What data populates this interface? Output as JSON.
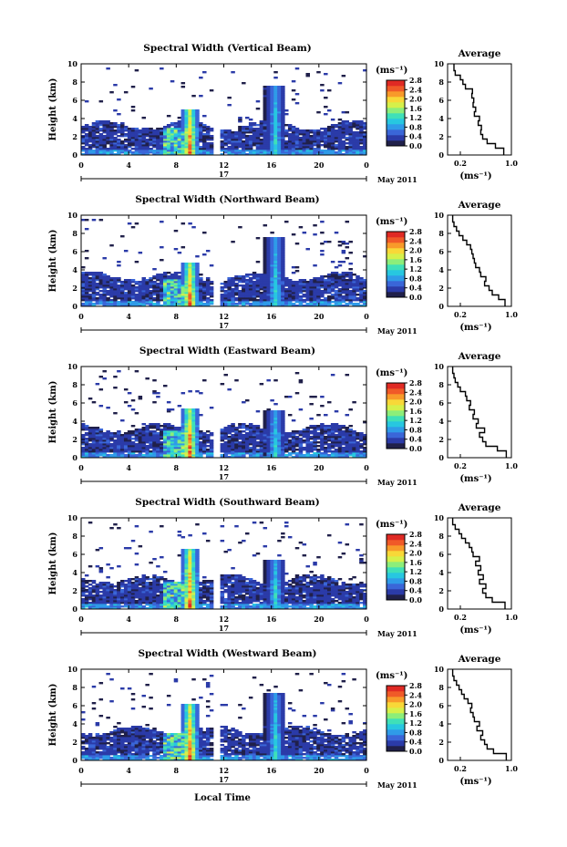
{
  "figure": {
    "month_label": "May 2011",
    "day_label": "17",
    "x_title": "Local Time",
    "units_label": "(ms⁻¹)",
    "average_title": "Average"
  },
  "colorbar_ticks": [
    "2.8",
    "2.4",
    "2.0",
    "1.6",
    "1.2",
    "0.8",
    "0.4",
    "0.0"
  ],
  "colors": {
    "colormap": [
      "#20204a",
      "#2b3ba8",
      "#3a66d8",
      "#2f9be8",
      "#27c7e0",
      "#3fe0b8",
      "#8cee7a",
      "#d6f04a",
      "#f8d838",
      "#f89a2a",
      "#f05a28",
      "#e02a24"
    ],
    "line": "#000000"
  },
  "chart_data": [
    {
      "type": "heatmap",
      "title": "Spectral Width (Vertical Beam)",
      "ylabel": "Height (km)",
      "xlim": [
        0,
        24
      ],
      "ylim": [
        0,
        10
      ],
      "xticks": [
        "0",
        "4",
        "8",
        "12",
        "16",
        "20",
        "0"
      ],
      "yticks": [
        "0",
        "2",
        "4",
        "6",
        "8",
        "10"
      ],
      "colorbar_range": [
        0.0,
        2.8
      ],
      "data_gaps": [
        [
          11.0,
          11.7
        ]
      ],
      "features": [
        {
          "x": 9.0,
          "peak_height": 5.0,
          "max_value": 2.8
        },
        {
          "x": 16.2,
          "peak_height": 7.6,
          "max_value": 1.4
        }
      ],
      "profile": {
        "xlabel": "(ms⁻¹)",
        "xlim": [
          0.0,
          1.0
        ],
        "xticks": [
          "0.2",
          "1.0"
        ],
        "yticks": [
          "0",
          "2",
          "4",
          "6",
          "8",
          "10"
        ],
        "height": [
          0.5,
          1,
          1.5,
          2,
          2.5,
          3,
          3.5,
          4,
          4.5,
          5,
          5.5,
          6,
          6.5,
          7,
          7.5,
          8,
          8.5,
          9,
          9.5
        ],
        "value": [
          0.88,
          0.75,
          0.62,
          0.55,
          0.52,
          0.53,
          0.48,
          0.5,
          0.42,
          0.44,
          0.4,
          0.41,
          0.38,
          0.39,
          0.28,
          0.24,
          0.2,
          0.12,
          0.1
        ]
      }
    },
    {
      "type": "heatmap",
      "title": "Spectral Width (Northward Beam)",
      "ylabel": "Height (km)",
      "xlim": [
        0,
        24
      ],
      "ylim": [
        0,
        10
      ],
      "xticks": [
        "0",
        "4",
        "8",
        "12",
        "16",
        "20",
        "0"
      ],
      "yticks": [
        "0",
        "2",
        "4",
        "6",
        "8",
        "10"
      ],
      "colorbar_range": [
        0.0,
        2.8
      ],
      "data_gaps": [
        [
          11.0,
          11.7
        ]
      ],
      "features": [
        {
          "x": 9.0,
          "peak_height": 4.8,
          "max_value": 2.8
        },
        {
          "x": 16.2,
          "peak_height": 7.6,
          "max_value": 1.4
        }
      ],
      "profile": {
        "xlabel": "(ms⁻¹)",
        "xlim": [
          0.0,
          1.0
        ],
        "xticks": [
          "0.2",
          "1.0"
        ],
        "yticks": [
          "0",
          "2",
          "4",
          "6",
          "8",
          "10"
        ],
        "height": [
          0.5,
          1,
          1.5,
          2,
          2.5,
          3,
          3.5,
          4,
          4.5,
          5,
          5.5,
          6,
          6.5,
          7,
          7.5,
          8,
          8.5,
          9,
          9.5
        ],
        "value": [
          0.9,
          0.8,
          0.7,
          0.65,
          0.58,
          0.6,
          0.52,
          0.5,
          0.44,
          0.42,
          0.4,
          0.38,
          0.36,
          0.3,
          0.24,
          0.18,
          0.14,
          0.1,
          0.08
        ]
      }
    },
    {
      "type": "heatmap",
      "title": "Spectral Width (Eastward Beam)",
      "ylabel": "Height (km)",
      "xlim": [
        0,
        24
      ],
      "ylim": [
        0,
        10
      ],
      "xticks": [
        "0",
        "4",
        "8",
        "12",
        "16",
        "20",
        "0"
      ],
      "yticks": [
        "0",
        "2",
        "4",
        "6",
        "8",
        "10"
      ],
      "colorbar_range": [
        0.0,
        2.8
      ],
      "data_gaps": [
        [
          11.0,
          11.7
        ]
      ],
      "features": [
        {
          "x": 9.0,
          "peak_height": 5.4,
          "max_value": 2.8
        },
        {
          "x": 16.2,
          "peak_height": 5.2,
          "max_value": 1.4
        }
      ],
      "profile": {
        "xlabel": "(ms⁻¹)",
        "xlim": [
          0.0,
          1.0
        ],
        "xticks": [
          "0.2",
          "1.0"
        ],
        "yticks": [
          "0",
          "2",
          "4",
          "6",
          "8",
          "10"
        ],
        "height": [
          0.5,
          1,
          1.5,
          2,
          2.5,
          3,
          3.5,
          4,
          4.5,
          5,
          5.5,
          6,
          6.5,
          7,
          7.5,
          8,
          8.5,
          9,
          9.5
        ],
        "value": [
          0.92,
          0.78,
          0.6,
          0.55,
          0.5,
          0.58,
          0.45,
          0.48,
          0.4,
          0.42,
          0.34,
          0.36,
          0.3,
          0.28,
          0.2,
          0.16,
          0.12,
          0.1,
          0.08
        ]
      }
    },
    {
      "type": "heatmap",
      "title": "Spectral Width (Southward Beam)",
      "ylabel": "Height (km)",
      "xlim": [
        0,
        24
      ],
      "ylim": [
        0,
        10
      ],
      "xticks": [
        "0",
        "4",
        "8",
        "12",
        "16",
        "20",
        "0"
      ],
      "yticks": [
        "0",
        "2",
        "4",
        "6",
        "8",
        "10"
      ],
      "colorbar_range": [
        0.0,
        2.8
      ],
      "data_gaps": [
        [
          11.0,
          11.7
        ]
      ],
      "features": [
        {
          "x": 9.0,
          "peak_height": 6.6,
          "max_value": 2.8
        },
        {
          "x": 16.2,
          "peak_height": 5.4,
          "max_value": 1.4
        }
      ],
      "profile": {
        "xlabel": "(ms⁻¹)",
        "xlim": [
          0.0,
          1.0
        ],
        "xticks": [
          "0.2",
          "1.0"
        ],
        "yticks": [
          "0",
          "2",
          "4",
          "6",
          "8",
          "10"
        ],
        "height": [
          0.5,
          1,
          1.5,
          2,
          2.5,
          3,
          3.5,
          4,
          4.5,
          5,
          5.5,
          6,
          6.5,
          7,
          7.5,
          8,
          8.5,
          9,
          9.5
        ],
        "value": [
          0.9,
          0.7,
          0.6,
          0.55,
          0.6,
          0.5,
          0.56,
          0.48,
          0.52,
          0.44,
          0.5,
          0.4,
          0.38,
          0.34,
          0.28,
          0.22,
          0.18,
          0.12,
          0.08
        ]
      }
    },
    {
      "type": "heatmap",
      "title": "Spectral Width (Westward Beam)",
      "ylabel": "Height (km)",
      "xlabel": "Local Time",
      "xlim": [
        0,
        24
      ],
      "ylim": [
        0,
        10
      ],
      "xticks": [
        "0",
        "4",
        "8",
        "12",
        "16",
        "20",
        "0"
      ],
      "yticks": [
        "0",
        "2",
        "4",
        "6",
        "8",
        "10"
      ],
      "colorbar_range": [
        0.0,
        2.8
      ],
      "data_gaps": [
        [
          11.0,
          11.7
        ]
      ],
      "features": [
        {
          "x": 9.0,
          "peak_height": 6.2,
          "max_value": 2.8
        },
        {
          "x": 16.2,
          "peak_height": 7.4,
          "max_value": 1.4
        }
      ],
      "profile": {
        "xlabel": "(ms⁻¹)",
        "xlim": [
          0.0,
          1.0
        ],
        "xticks": [
          "0.2",
          "1.0"
        ],
        "yticks": [
          "0",
          "2",
          "4",
          "6",
          "8",
          "10"
        ],
        "height": [
          0.5,
          1,
          1.5,
          2,
          2.5,
          3,
          3.5,
          4,
          4.5,
          5,
          5.5,
          6,
          6.5,
          7,
          7.5,
          8,
          8.5,
          9,
          9.5
        ],
        "value": [
          0.92,
          0.72,
          0.62,
          0.58,
          0.52,
          0.55,
          0.46,
          0.5,
          0.42,
          0.4,
          0.36,
          0.38,
          0.32,
          0.26,
          0.22,
          0.18,
          0.14,
          0.1,
          0.08
        ]
      }
    }
  ]
}
